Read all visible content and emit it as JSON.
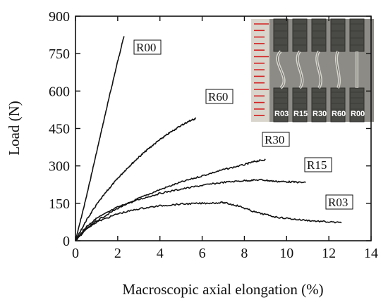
{
  "chart_data": {
    "type": "line",
    "title": "",
    "xlabel": "Macroscopic axial elongation (%)",
    "ylabel": "Load (N)",
    "xlim": [
      0,
      14
    ],
    "ylim": [
      0,
      900
    ],
    "x_ticks": [
      0,
      2,
      4,
      6,
      8,
      10,
      12,
      14
    ],
    "y_ticks": [
      0,
      150,
      300,
      450,
      600,
      750,
      900
    ],
    "grid": false,
    "legend": "none",
    "series": [
      {
        "name": "R00",
        "x": [
          0,
          0.5,
          1.0,
          1.5,
          2.0,
          2.3
        ],
        "y": [
          0,
          170,
          355,
          540,
          720,
          820
        ]
      },
      {
        "name": "R60",
        "x": [
          0,
          0.5,
          1.0,
          1.5,
          2.0,
          2.5,
          3.0,
          3.5,
          4.0,
          4.5,
          5.0,
          5.4,
          5.7
        ],
        "y": [
          0,
          80,
          145,
          200,
          250,
          295,
          335,
          372,
          405,
          435,
          462,
          480,
          490
        ]
      },
      {
        "name": "R30",
        "x": [
          0,
          0.5,
          1,
          2,
          3,
          4,
          5,
          6,
          7,
          8,
          8.5,
          9.0
        ],
        "y": [
          0,
          45,
          80,
          130,
          170,
          205,
          235,
          260,
          285,
          305,
          318,
          325
        ]
      },
      {
        "name": "R15",
        "x": [
          0,
          0.5,
          1,
          2,
          3,
          4,
          5,
          6,
          7,
          8,
          8.8,
          9.5,
          10.2,
          10.9
        ],
        "y": [
          0,
          55,
          90,
          135,
          165,
          190,
          207,
          222,
          234,
          241,
          244,
          238,
          236,
          233
        ]
      },
      {
        "name": "R03",
        "x": [
          0,
          0.5,
          1,
          2,
          3,
          4,
          5,
          6,
          7,
          7.7,
          8.5,
          9.5,
          10.5,
          11.5,
          12.6
        ],
        "y": [
          0,
          48,
          75,
          108,
          128,
          140,
          147,
          150,
          153,
          140,
          115,
          95,
          85,
          78,
          72
        ]
      }
    ],
    "series_labels": [
      "R00",
      "R60",
      "R30",
      "R15",
      "R03"
    ],
    "inset_photo_labels": [
      "R03",
      "R15",
      "R30",
      "R60",
      "R00"
    ]
  },
  "colors": {
    "line": "#111111",
    "photo_background": "#8a8a86",
    "photo_grip": "#4a4a46",
    "ruler": "#d42020"
  }
}
